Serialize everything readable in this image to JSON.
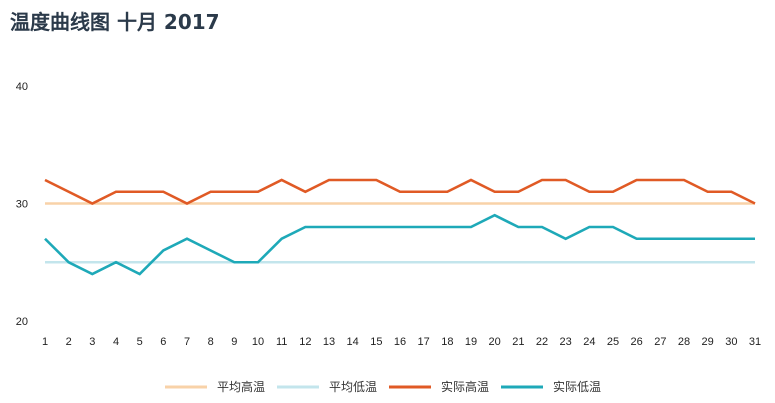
{
  "title": "温度曲线图 十月 2017",
  "chart_data": {
    "type": "line",
    "title": "温度曲线图 十月 2017",
    "x": [
      1,
      2,
      3,
      4,
      5,
      6,
      7,
      8,
      9,
      10,
      11,
      12,
      13,
      14,
      15,
      16,
      17,
      18,
      19,
      20,
      21,
      22,
      23,
      24,
      25,
      26,
      27,
      28,
      29,
      30,
      31
    ],
    "yticks": [
      20,
      30,
      40
    ],
    "ylim": [
      20,
      40
    ],
    "grid": false,
    "legend_position": "bottom",
    "series": [
      {
        "name": "平均高温",
        "color": "#f8d2a8",
        "values": [
          30,
          30,
          30,
          30,
          30,
          30,
          30,
          30,
          30,
          30,
          30,
          30,
          30,
          30,
          30,
          30,
          30,
          30,
          30,
          30,
          30,
          30,
          30,
          30,
          30,
          30,
          30,
          30,
          30,
          30,
          30
        ]
      },
      {
        "name": "平均低温",
        "color": "#c3e5ec",
        "values": [
          25,
          25,
          25,
          25,
          25,
          25,
          25,
          25,
          25,
          25,
          25,
          25,
          25,
          25,
          25,
          25,
          25,
          25,
          25,
          25,
          25,
          25,
          25,
          25,
          25,
          25,
          25,
          25,
          25,
          25,
          25
        ]
      },
      {
        "name": "实际高温",
        "color": "#e05a25",
        "values": [
          32,
          31,
          30,
          31,
          31,
          31,
          30,
          31,
          31,
          31,
          32,
          31,
          32,
          32,
          32,
          31,
          31,
          31,
          32,
          31,
          31,
          32,
          32,
          31,
          31,
          32,
          32,
          32,
          31,
          31,
          30
        ]
      },
      {
        "name": "实际低温",
        "color": "#1ea9b8",
        "values": [
          27,
          25,
          24,
          25,
          24,
          26,
          27,
          26,
          25,
          25,
          27,
          28,
          28,
          28,
          28,
          28,
          28,
          28,
          28,
          29,
          28,
          28,
          27,
          28,
          28,
          27,
          27,
          27,
          27,
          27,
          27
        ]
      }
    ]
  }
}
